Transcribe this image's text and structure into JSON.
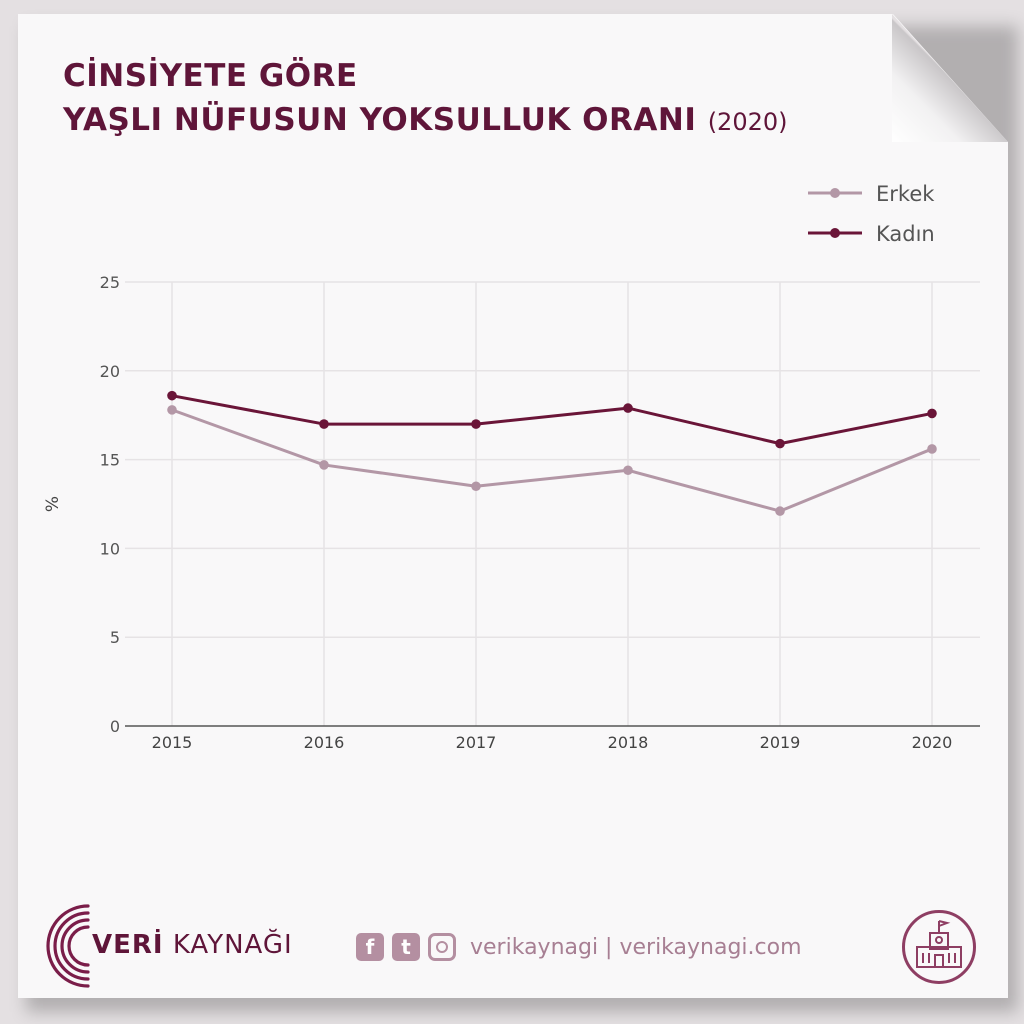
{
  "title": {
    "line1": "CİNSİYETE GÖRE",
    "line2": "YAŞLI NÜFUSUN YOKSULLUK ORANI",
    "year": "(2020)"
  },
  "colors": {
    "accent": "#5f1539",
    "erkek": "#b397a6",
    "kadin": "#6a1538",
    "grid": "#e6e3e5",
    "axis": "#555555"
  },
  "chart_data": {
    "type": "line",
    "x": [
      "2015",
      "2016",
      "2017",
      "2018",
      "2019",
      "2020"
    ],
    "series": [
      {
        "name": "Erkek",
        "values": [
          17.8,
          14.7,
          13.5,
          14.4,
          12.1,
          15.6
        ]
      },
      {
        "name": "Kadın",
        "values": [
          18.6,
          17.0,
          17.0,
          17.9,
          15.9,
          17.6
        ]
      }
    ],
    "ylabel": "%",
    "xlabel": "",
    "ylim": [
      0,
      25
    ],
    "yticks": [
      0,
      5,
      10,
      15,
      20,
      25
    ],
    "grid": true,
    "legend": "top-right"
  },
  "footer": {
    "brand_bold": "VERİ",
    "brand_rest": " KAYNAĞI",
    "handle": "verikaynagi | verikaynagi.com",
    "facebook": "f",
    "twitter": "t"
  },
  "icons": [
    "facebook-icon",
    "twitter-icon",
    "instagram-icon",
    "school-icon",
    "veri-kaynagi-logo"
  ]
}
